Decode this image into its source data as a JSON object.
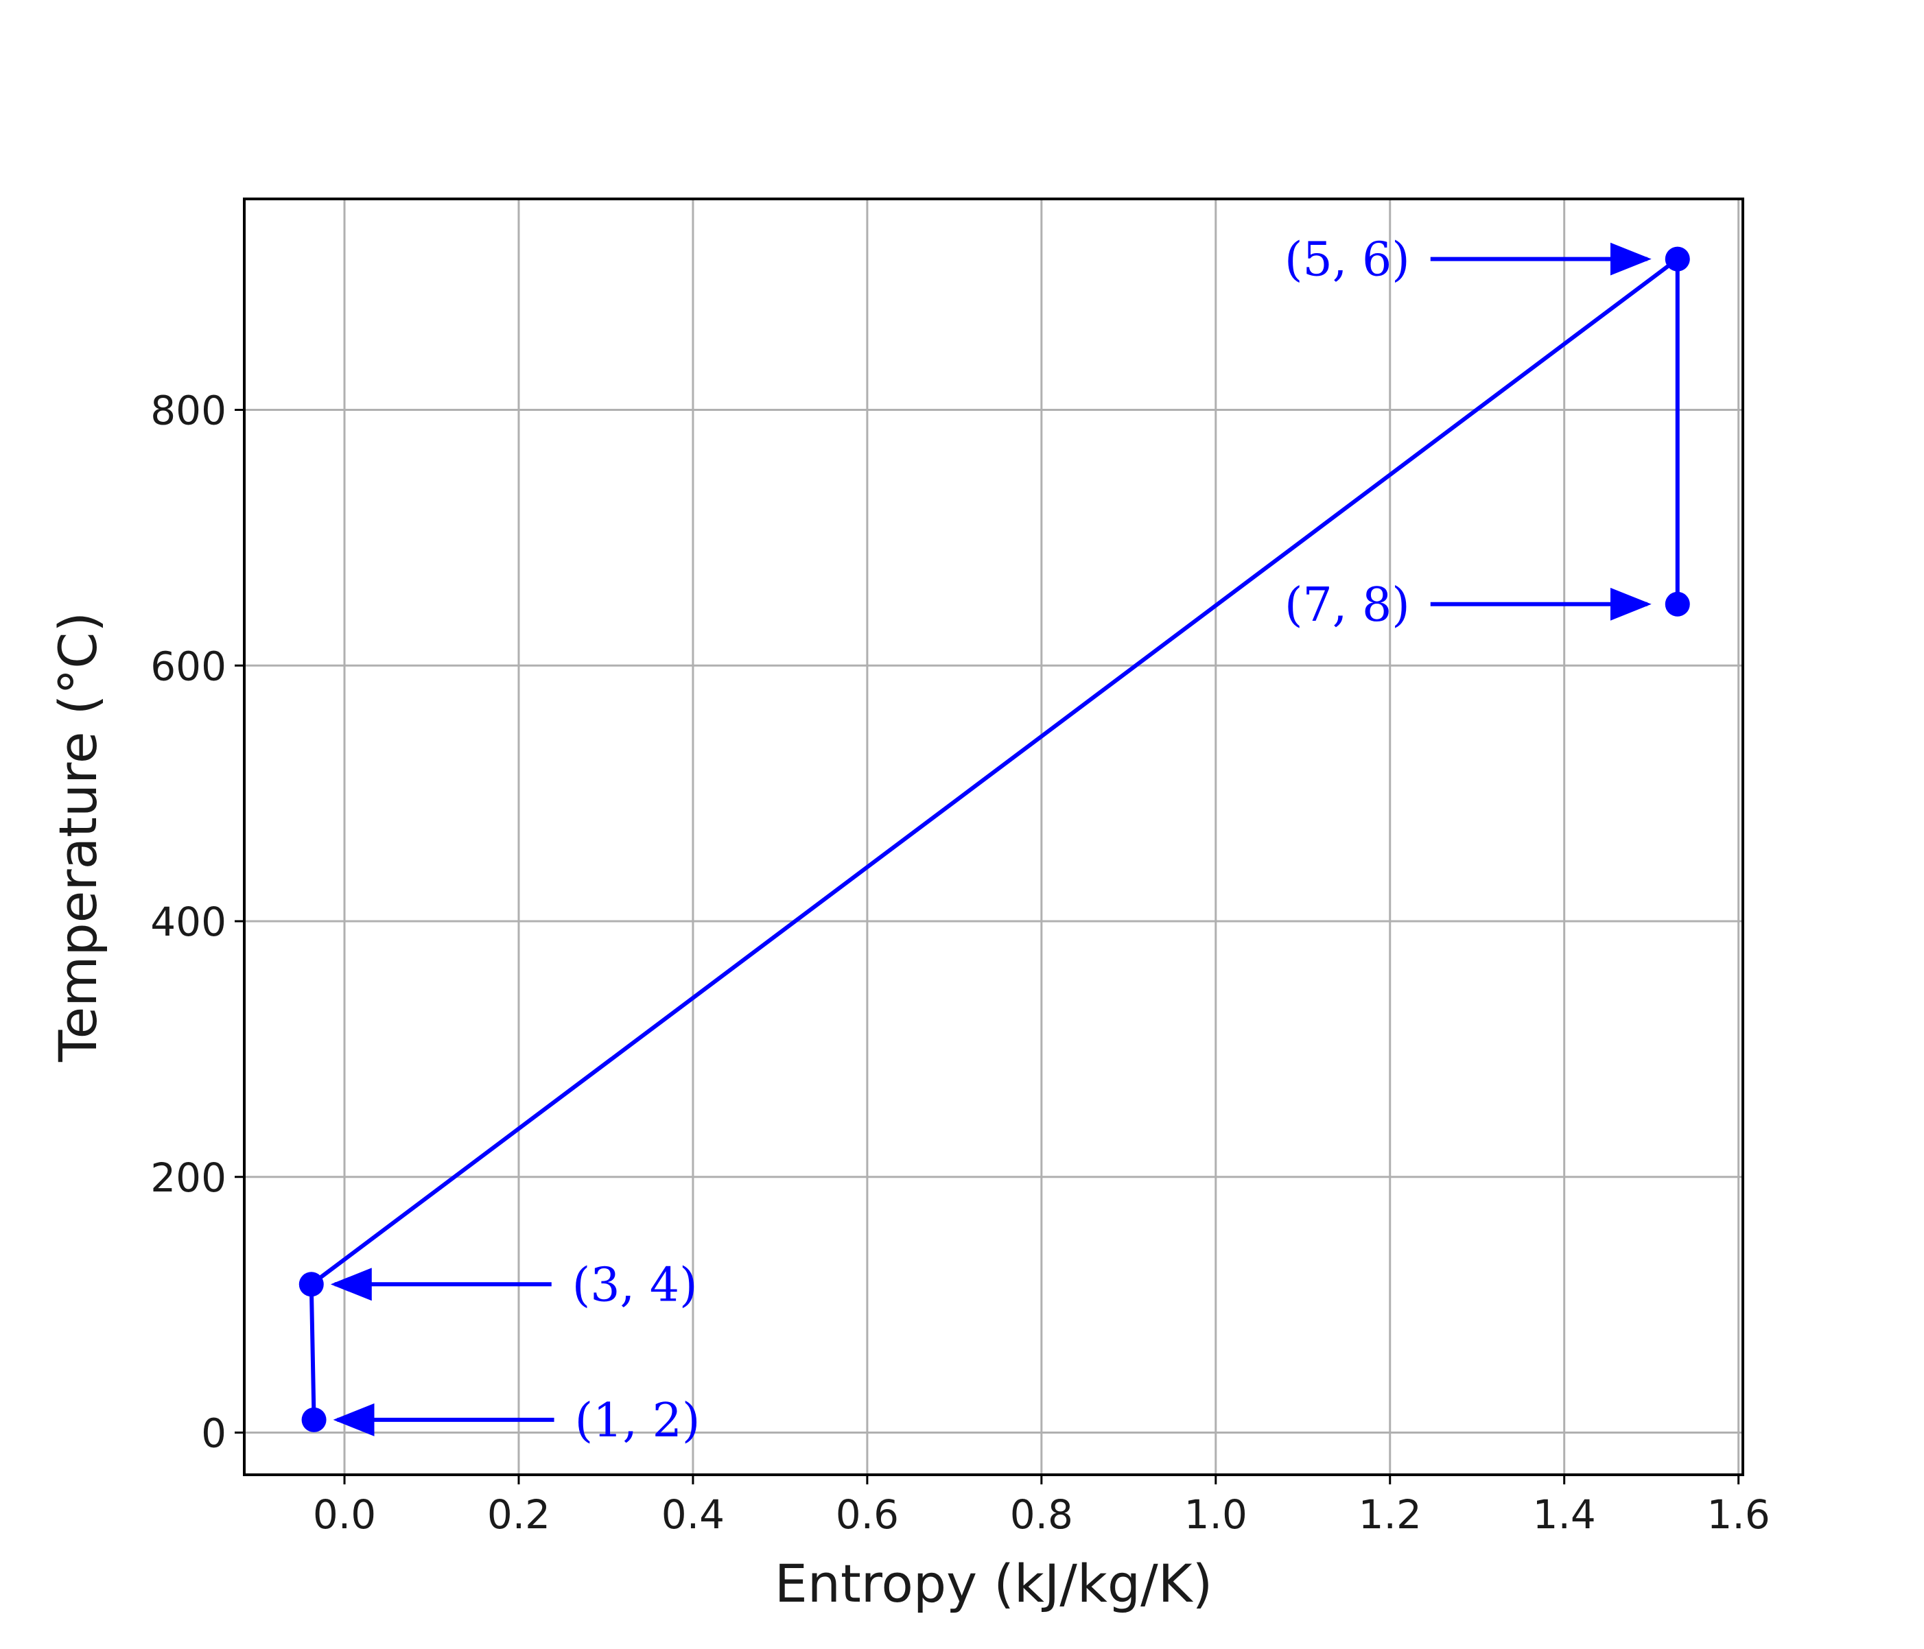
{
  "chart_data": {
    "type": "line",
    "title": "",
    "xlabel": "Entropy (kJ/kg/K)",
    "ylabel": "Temperature (°C)",
    "xlim": [
      -0.115,
      1.605
    ],
    "ylim": [
      -33,
      965
    ],
    "xticks": [
      0.0,
      0.2,
      0.4,
      0.6,
      0.8,
      1.0,
      1.2,
      1.4,
      1.6
    ],
    "xtick_labels": [
      "0.0",
      "0.2",
      "0.4",
      "0.6",
      "0.8",
      "1.0",
      "1.2",
      "1.4",
      "1.6"
    ],
    "yticks": [
      0,
      200,
      400,
      600,
      800
    ],
    "ytick_labels": [
      "0",
      "200",
      "400",
      "600",
      "800"
    ],
    "grid": true,
    "color": "#0000ff",
    "series": [
      {
        "points": [
          {
            "x": -0.035,
            "y": 10
          },
          {
            "x": -0.038,
            "y": 116
          },
          {
            "x": 1.53,
            "y": 918
          },
          {
            "x": 1.53,
            "y": 648
          }
        ]
      }
    ],
    "annotations": [
      {
        "text": "(1, 2)",
        "x": -0.035,
        "y": 10,
        "side": "right"
      },
      {
        "text": "(3, 4)",
        "x": -0.038,
        "y": 116,
        "side": "right"
      },
      {
        "text": "(5, 6)",
        "x": 1.53,
        "y": 918,
        "side": "left"
      },
      {
        "text": "(7, 8)",
        "x": 1.53,
        "y": 648,
        "side": "left"
      }
    ]
  }
}
